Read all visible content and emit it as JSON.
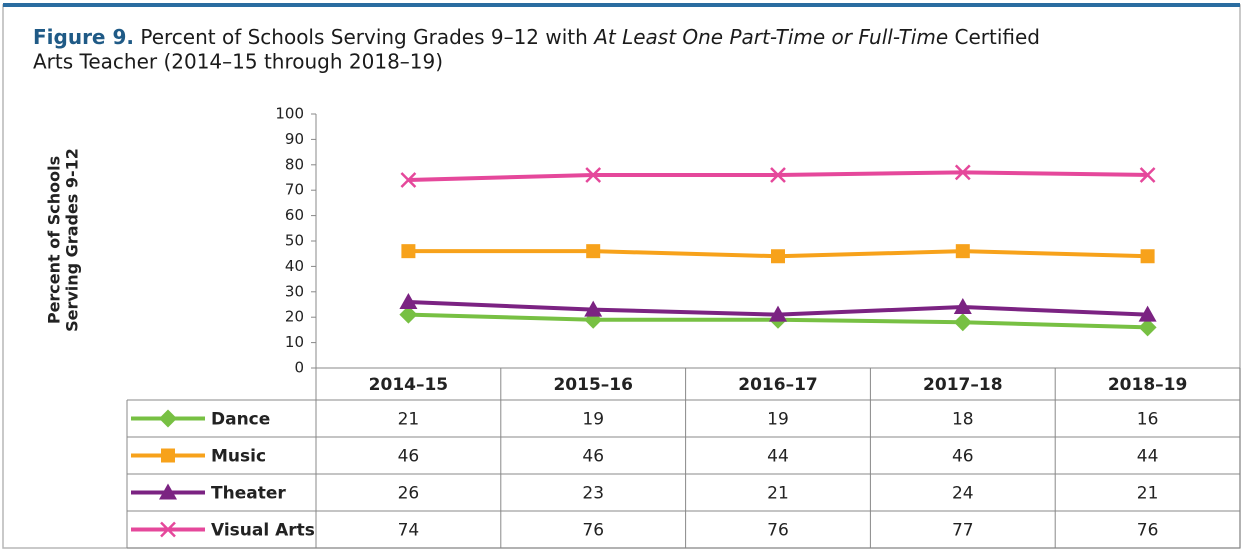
{
  "chart_data": {
    "type": "line",
    "title_runs": [
      "Figure 9.",
      " Percent of Schools Serving Grades 9–12 with ",
      "At Least One Part-Time or Full-Time",
      " Certified",
      "Arts Teacher (2014–15 through 2018–19)"
    ],
    "ylabel_lines": [
      "Percent of Schools",
      "Serving Grades 9-12"
    ],
    "categories": [
      "2014–15",
      "2015–16",
      "2016–17",
      "2017–18",
      "2018–19"
    ],
    "ylim": [
      0,
      100
    ],
    "yticks": [
      0,
      10,
      20,
      30,
      40,
      50,
      60,
      70,
      80,
      90,
      100
    ],
    "series": [
      {
        "name": "Dance",
        "color": "#77c043",
        "marker": "diamond",
        "values": [
          21,
          19,
          19,
          18,
          16
        ]
      },
      {
        "name": "Music",
        "color": "#f7a21b",
        "marker": "square",
        "values": [
          46,
          46,
          44,
          46,
          44
        ]
      },
      {
        "name": "Theater",
        "color": "#7b2382",
        "marker": "triangle",
        "values": [
          26,
          23,
          21,
          24,
          21
        ]
      },
      {
        "name": "Visual Arts",
        "color": "#e5489b",
        "marker": "x",
        "values": [
          74,
          76,
          76,
          77,
          76
        ]
      }
    ]
  }
}
